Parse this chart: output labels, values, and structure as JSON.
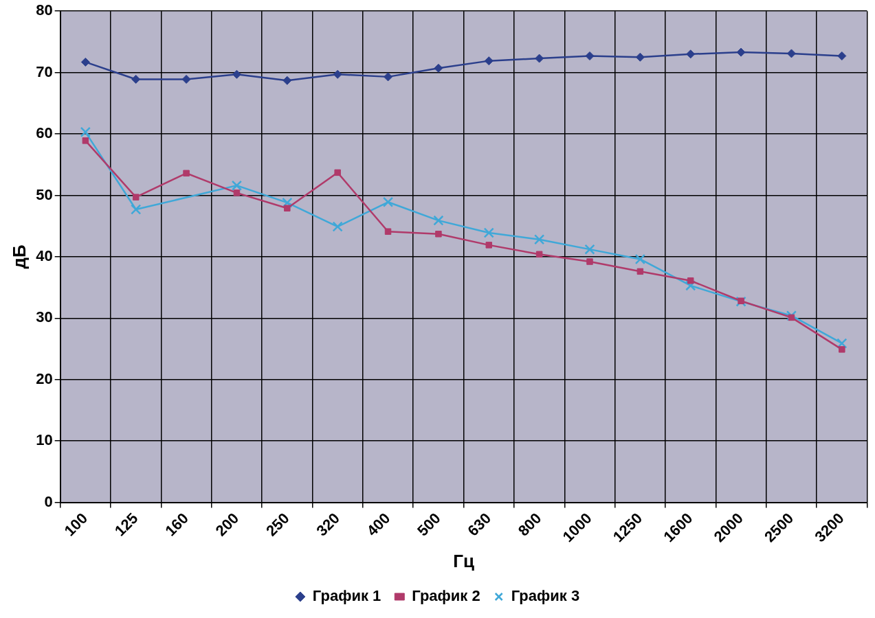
{
  "chart_data": {
    "type": "line",
    "xlabel": "Гц",
    "ylabel": "дБ",
    "categories": [
      "100",
      "125",
      "160",
      "200",
      "250",
      "320",
      "400",
      "500",
      "630",
      "800",
      "1000",
      "1250",
      "1600",
      "2000",
      "2500",
      "3200"
    ],
    "ylim": [
      0,
      80
    ],
    "yticks": [
      0,
      10,
      20,
      30,
      40,
      50,
      60,
      70,
      80
    ],
    "grid": true,
    "legend": "bottom",
    "line_style": "solid",
    "series": [
      {
        "name": "График 1",
        "color": "#2b3f8c",
        "marker": "diamond",
        "values": [
          71.7,
          68.9,
          68.9,
          69.7,
          68.7,
          69.7,
          69.3,
          70.7,
          71.9,
          72.3,
          72.7,
          72.5,
          73.0,
          73.3,
          73.1,
          72.7
        ]
      },
      {
        "name": "График 2",
        "color": "#b03a6a",
        "marker": "square",
        "values": [
          58.9,
          49.7,
          53.6,
          50.4,
          47.9,
          53.7,
          44.1,
          43.7,
          41.9,
          40.4,
          39.2,
          37.6,
          36.1,
          32.8,
          30.1,
          24.9
        ]
      },
      {
        "name": "График 3",
        "color": "#3fa8d8",
        "marker": "cross",
        "values": [
          60.3,
          47.7,
          null,
          51.6,
          48.8,
          44.9,
          48.9,
          45.9,
          43.9,
          42.8,
          41.2,
          39.6,
          35.3,
          32.7,
          30.4,
          25.9
        ]
      }
    ]
  }
}
